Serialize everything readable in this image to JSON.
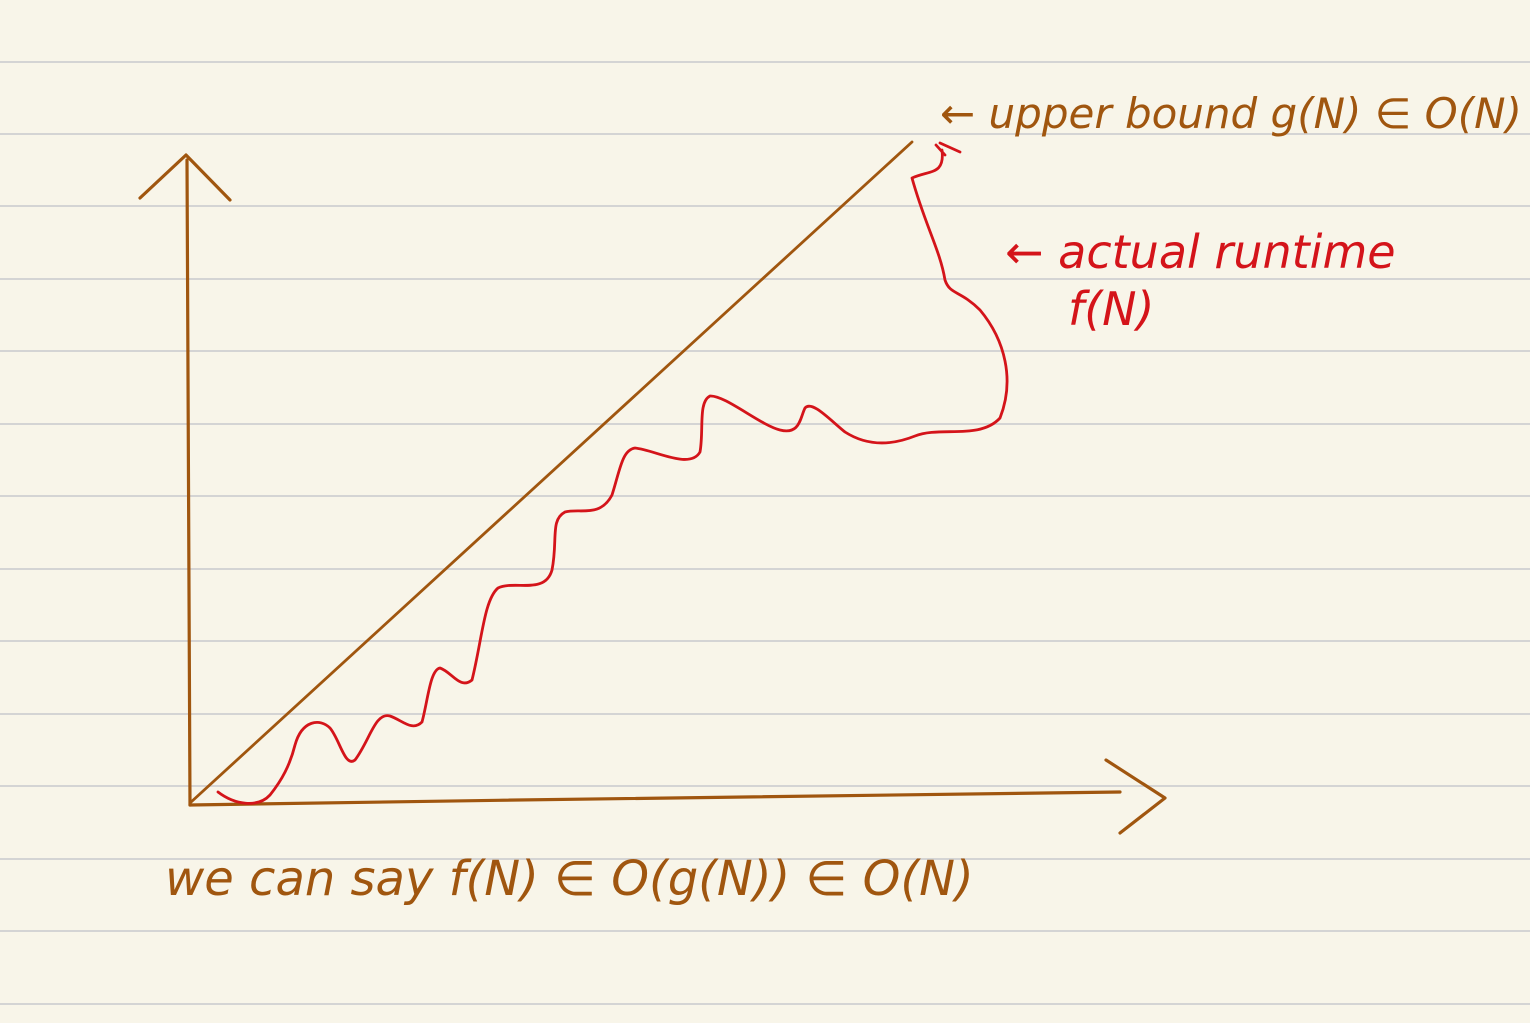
{
  "colors": {
    "paper": "#f8f5e9",
    "rule_line": "#d4d4d4",
    "brown_ink": "#a0560f",
    "red_ink": "#d4141a"
  },
  "annotations": {
    "upper_bound": "← upper bound g(N) ∈ O(N)",
    "actual_runtime_line1": "← actual runtime",
    "actual_runtime_line2": "f(N)",
    "conclusion": "we can say  f(N) ∈ O(g(N)) ∈ O(N)"
  }
}
